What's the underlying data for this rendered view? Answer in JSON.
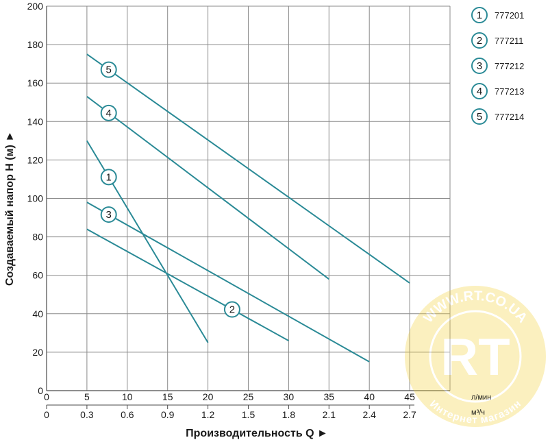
{
  "chart_data": {
    "type": "line",
    "ylabel": "Создаваемый напор H (м) ►",
    "xlabel": "Производительность Q ►",
    "x_unit_primary": "л/мин",
    "x_unit_secondary": "м³/ч",
    "x_ticks_primary": [
      "0",
      "5",
      "10",
      "15",
      "20",
      "25",
      "30",
      "35",
      "40",
      "45"
    ],
    "x_ticks_secondary": [
      "0",
      "0.3",
      "0.6",
      "0.9",
      "1.2",
      "1.5",
      "1.8",
      "2.1",
      "2.4",
      "2.7"
    ],
    "y_ticks": [
      "0",
      "20",
      "40",
      "60",
      "80",
      "100",
      "120",
      "140",
      "160",
      "180",
      "200"
    ],
    "xlim": [
      0,
      50
    ],
    "ylim": [
      0,
      200
    ],
    "grid": true,
    "legend_position": "right",
    "line_color": "#2a8a96",
    "series": [
      {
        "name": "777201",
        "marker": "1",
        "marker_x": 7.7,
        "x": [
          5,
          20
        ],
        "y": [
          130,
          25
        ]
      },
      {
        "name": "777211",
        "marker": "2",
        "marker_x": 23,
        "x": [
          5,
          30
        ],
        "y": [
          84,
          26
        ]
      },
      {
        "name": "777212",
        "marker": "3",
        "marker_x": 7.7,
        "x": [
          5,
          40
        ],
        "y": [
          98,
          15
        ]
      },
      {
        "name": "777213",
        "marker": "4",
        "marker_x": 7.7,
        "x": [
          5,
          35
        ],
        "y": [
          153,
          58
        ]
      },
      {
        "name": "777214",
        "marker": "5",
        "marker_x": 7.7,
        "x": [
          5,
          45
        ],
        "y": [
          175,
          56
        ]
      }
    ]
  },
  "watermark": {
    "logo": "RT",
    "top_text": "WWW.RT.CO.UA",
    "bottom_text": "Интернет магазин"
  }
}
